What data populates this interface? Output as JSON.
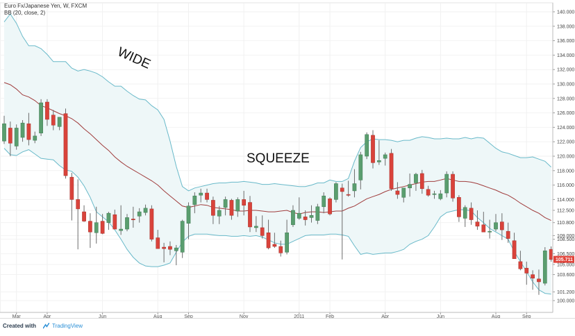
{
  "header": {
    "symbol_line": "Euro Fx/Japanese Yen, W, FXCM",
    "indicator_line": "BB (20, close, 2)"
  },
  "footer": {
    "created_with": "Created with",
    "brand": "TradingView"
  },
  "colors": {
    "up_candle": "#5a9e6f",
    "down_candle": "#d9433b",
    "bb_band": "#68b9c9",
    "bb_basis": "#a03c3c",
    "bb_fill": "#eef7f8",
    "last_price_badge": "#e0433a"
  },
  "chart_data": {
    "type": "candlestick",
    "interval": "Weekly",
    "ylim": [
      99.0,
      141.0
    ],
    "y_ticks": [
      "140.000",
      "138.000",
      "136.000",
      "134.000",
      "132.000",
      "130.000",
      "128.000",
      "126.000",
      "124.000",
      "122.000",
      "120.000",
      "118.000",
      "116.000",
      "114.000",
      "112.500",
      "110.800",
      "109.000",
      "108.500",
      "106.500",
      "105.000",
      "103.600",
      "101.200",
      "100.000"
    ],
    "x_ticks": [
      {
        "label": "Mar",
        "bar": 2
      },
      {
        "label": "Apr",
        "bar": 7
      },
      {
        "label": "Jun",
        "bar": 16
      },
      {
        "label": "Aug",
        "bar": 25
      },
      {
        "label": "Sep",
        "bar": 30
      },
      {
        "label": "Nov",
        "bar": 39
      },
      {
        "label": "2011",
        "bar": 48
      },
      {
        "label": "Feb",
        "bar": 53
      },
      {
        "label": "Apr",
        "bar": 62
      },
      {
        "label": "Jun",
        "bar": 71
      },
      {
        "label": "Aug",
        "bar": 80
      },
      {
        "label": "Sep",
        "bar": 85
      }
    ],
    "last_price": "105.711",
    "annotations": [
      "WIDE",
      "SQUEEZE"
    ],
    "candles": [
      [
        122.1,
        125.6,
        121.7,
        124.5
      ],
      [
        123.9,
        124.8,
        120.0,
        121.8
      ],
      [
        121.4,
        124.4,
        120.9,
        123.9
      ],
      [
        122.6,
        125.0,
        122.0,
        124.6
      ],
      [
        124.5,
        126.0,
        121.5,
        122.3
      ],
      [
        122.2,
        123.4,
        121.8,
        122.8
      ],
      [
        123.2,
        127.9,
        122.8,
        127.4
      ],
      [
        127.5,
        127.9,
        124.2,
        125.1
      ],
      [
        125.7,
        126.4,
        123.6,
        124.3
      ],
      [
        124.1,
        125.4,
        123.6,
        125.4
      ],
      [
        125.9,
        126.6,
        116.9,
        117.3
      ],
      [
        117.1,
        117.7,
        111.1,
        114.0
      ],
      [
        114.0,
        116.8,
        107.1,
        112.7
      ],
      [
        112.3,
        113.2,
        110.9,
        111.0
      ],
      [
        111.0,
        112.1,
        107.3,
        109.5
      ],
      [
        109.4,
        113.0,
        107.9,
        110.8
      ],
      [
        111.0,
        112.0,
        109.2,
        109.3
      ],
      [
        110.8,
        112.3,
        109.8,
        112.1
      ],
      [
        111.9,
        112.6,
        110.0,
        109.9
      ],
      [
        109.7,
        113.2,
        109.1,
        109.9
      ],
      [
        109.9,
        112.0,
        109.6,
        111.5
      ],
      [
        111.3,
        113.0,
        110.1,
        111.2
      ],
      [
        111.7,
        112.8,
        110.8,
        112.3
      ],
      [
        112.2,
        113.3,
        111.8,
        112.8
      ],
      [
        112.7,
        113.2,
        108.2,
        108.5
      ],
      [
        108.7,
        109.8,
        107.2,
        107.2
      ],
      [
        107.4,
        108.0,
        105.3,
        107.2
      ],
      [
        107.5,
        108.2,
        106.3,
        107.1
      ],
      [
        106.9,
        107.7,
        104.9,
        107.3
      ],
      [
        106.7,
        111.2,
        105.9,
        111.0
      ],
      [
        110.7,
        113.6,
        108.5,
        113.1
      ],
      [
        113.3,
        115.0,
        112.1,
        114.5
      ],
      [
        114.6,
        115.5,
        113.6,
        114.9
      ],
      [
        114.9,
        115.5,
        113.6,
        114.0
      ],
      [
        113.9,
        114.4,
        110.6,
        111.8
      ],
      [
        111.7,
        113.1,
        110.6,
        112.5
      ],
      [
        112.9,
        114.4,
        111.8,
        114.0
      ],
      [
        113.9,
        114.1,
        111.2,
        111.8
      ],
      [
        112.4,
        114.3,
        111.6,
        114.0
      ],
      [
        114.0,
        115.2,
        111.8,
        113.2
      ],
      [
        113.6,
        114.5,
        109.5,
        110.2
      ],
      [
        110.1,
        111.7,
        109.5,
        110.3
      ],
      [
        110.1,
        111.8,
        108.6,
        109.0
      ],
      [
        109.4,
        111.2,
        107.1,
        107.3
      ],
      [
        107.8,
        109.4,
        107.3,
        107.5
      ],
      [
        107.5,
        108.3,
        106.1,
        106.6
      ],
      [
        106.7,
        111.2,
        106.4,
        109.4
      ],
      [
        110.5,
        113.2,
        110.2,
        112.5
      ],
      [
        111.4,
        114.3,
        111.2,
        112.1
      ],
      [
        111.6,
        112.5,
        110.4,
        111.2
      ],
      [
        111.5,
        113.2,
        110.8,
        111.8
      ],
      [
        111.1,
        113.4,
        110.6,
        113.0
      ],
      [
        113.0,
        115.0,
        112.1,
        114.5
      ],
      [
        114.1,
        114.3,
        111.8,
        112.0
      ],
      [
        114.0,
        116.4,
        113.6,
        116.2
      ],
      [
        115.6,
        116.2,
        105.7,
        115.1
      ],
      [
        114.7,
        116.6,
        114.4,
        114.6
      ],
      [
        115.2,
        118.2,
        114.3,
        116.2
      ],
      [
        116.7,
        120.6,
        115.4,
        120.2
      ],
      [
        120.0,
        123.3,
        119.6,
        123.0
      ],
      [
        122.9,
        123.6,
        118.3,
        119.1
      ],
      [
        119.2,
        122.2,
        118.8,
        119.4
      ],
      [
        119.7,
        120.5,
        118.7,
        120.2
      ],
      [
        120.4,
        121.0,
        115.2,
        115.5
      ],
      [
        115.2,
        116.4,
        114.1,
        114.7
      ],
      [
        114.3,
        115.6,
        113.6,
        115.6
      ],
      [
        115.6,
        117.6,
        114.4,
        116.1
      ],
      [
        116.3,
        117.7,
        115.2,
        117.5
      ],
      [
        117.6,
        118.1,
        114.8,
        115.5
      ],
      [
        115.4,
        115.9,
        114.4,
        114.6
      ],
      [
        114.7,
        115.2,
        114.1,
        114.8
      ],
      [
        114.1,
        115.3,
        113.9,
        114.8
      ],
      [
        114.9,
        117.9,
        114.3,
        117.5
      ],
      [
        117.5,
        117.9,
        113.7,
        114.2
      ],
      [
        114.3,
        114.6,
        110.9,
        111.6
      ],
      [
        111.4,
        113.2,
        110.2,
        112.9
      ],
      [
        112.8,
        113.6,
        110.5,
        111.2
      ],
      [
        110.9,
        112.5,
        109.8,
        110.3
      ],
      [
        110.5,
        112.3,
        109.7,
        109.5
      ],
      [
        109.6,
        111.2,
        108.6,
        109.6
      ],
      [
        109.9,
        112.0,
        109.6,
        110.8
      ],
      [
        110.9,
        112.1,
        108.4,
        109.8
      ],
      [
        109.6,
        110.8,
        108.0,
        108.6
      ],
      [
        108.3,
        109.4,
        106.1,
        105.8
      ],
      [
        105.4,
        106.9,
        104.2,
        104.4
      ],
      [
        104.5,
        105.4,
        102.2,
        103.8
      ],
      [
        103.6,
        104.2,
        101.5,
        103.1
      ],
      [
        103.0,
        104.3,
        100.8,
        102.6
      ],
      [
        102.4,
        107.4,
        102.1,
        106.9
      ],
      [
        107.1,
        107.5,
        105.4,
        105.7
      ]
    ],
    "bb_upper": [
      138.6,
      139.7,
      138.4,
      136.6,
      135.3,
      135.3,
      134.9,
      134.1,
      133.1,
      133.1,
      133.1,
      132.2,
      131.8,
      132.0,
      131.8,
      131.5,
      131.0,
      130.3,
      129.7,
      129.7,
      129.0,
      128.4,
      127.9,
      127.8,
      127.0,
      126.4,
      125.1,
      122.1,
      118.6,
      115.8,
      115.2,
      115.6,
      115.8,
      116.0,
      116.2,
      116.3,
      116.3,
      116.4,
      116.4,
      116.5,
      116.4,
      116.3,
      116.1,
      116.1,
      116.2,
      116.1,
      116.0,
      115.9,
      115.8,
      115.8,
      116.0,
      116.3,
      116.3,
      116.7,
      116.5,
      116.5,
      116.9,
      119.3,
      121.2,
      122.0,
      122.4,
      122.3,
      122.3,
      122.2,
      122.0,
      122.2,
      122.2,
      122.5,
      122.7,
      122.6,
      122.4,
      122.4,
      122.5,
      122.4,
      122.4,
      122.6,
      122.4,
      122.6,
      122.5,
      121.8,
      121.1,
      120.6,
      120.4,
      120.1,
      119.8,
      119.8,
      119.9,
      119.6,
      119.3,
      118.5
    ],
    "bb_basis": [
      130.2,
      129.9,
      129.3,
      128.5,
      128.2,
      127.7,
      127.0,
      126.7,
      126.3,
      125.9,
      125.6,
      125.2,
      124.6,
      123.8,
      123.1,
      122.3,
      121.5,
      120.8,
      119.9,
      119.2,
      118.6,
      118.1,
      117.6,
      117.1,
      116.6,
      116.0,
      115.2,
      114.5,
      113.8,
      113.1,
      112.9,
      113.1,
      113.3,
      113.2,
      112.9,
      112.8,
      112.7,
      112.6,
      112.4,
      112.4,
      112.5,
      112.5,
      112.4,
      112.3,
      112.3,
      112.4,
      112.5,
      112.2,
      112.0,
      112.2,
      112.3,
      112.3,
      112.2,
      112.3,
      112.4,
      112.4,
      112.8,
      113.1,
      113.6,
      114.1,
      114.4,
      114.7,
      115.1,
      115.4,
      115.6,
      115.8,
      116.0,
      116.2,
      116.4,
      116.5,
      116.5,
      116.7,
      116.9,
      116.7,
      116.5,
      116.5,
      116.4,
      116.2,
      115.9,
      115.6,
      115.3,
      114.9,
      114.6,
      114.1,
      113.5,
      113.0,
      112.5,
      112.1,
      111.5,
      111.1
    ],
    "bb_lower": [
      121.1,
      120.2,
      120.1,
      120.6,
      120.9,
      120.3,
      119.7,
      119.6,
      119.5,
      118.7,
      118.1,
      117.9,
      117.1,
      115.9,
      114.3,
      112.3,
      111.6,
      110.9,
      109.8,
      108.5,
      107.1,
      106.0,
      105.2,
      104.8,
      104.7,
      104.7,
      104.9,
      105.2,
      106.7,
      108.1,
      108.9,
      109.2,
      109.2,
      109.2,
      109.1,
      109.0,
      109.0,
      108.9,
      108.9,
      109.0,
      108.9,
      109.0,
      108.8,
      108.4,
      108.0,
      107.8,
      107.8,
      108.2,
      108.6,
      109.0,
      109.1,
      109.1,
      109.1,
      109.2,
      109.2,
      109.1,
      108.9,
      107.6,
      106.4,
      106.6,
      106.4,
      106.5,
      106.6,
      106.6,
      106.8,
      107.1,
      107.8,
      108.2,
      108.5,
      109.0,
      110.2,
      111.6,
      112.2,
      112.4,
      112.6,
      112.6,
      112.4,
      111.5,
      110.8,
      110.0,
      109.5,
      109.0,
      108.5,
      106.8,
      105.4,
      104.0,
      102.6,
      101.5,
      101.0,
      100.9
    ]
  }
}
